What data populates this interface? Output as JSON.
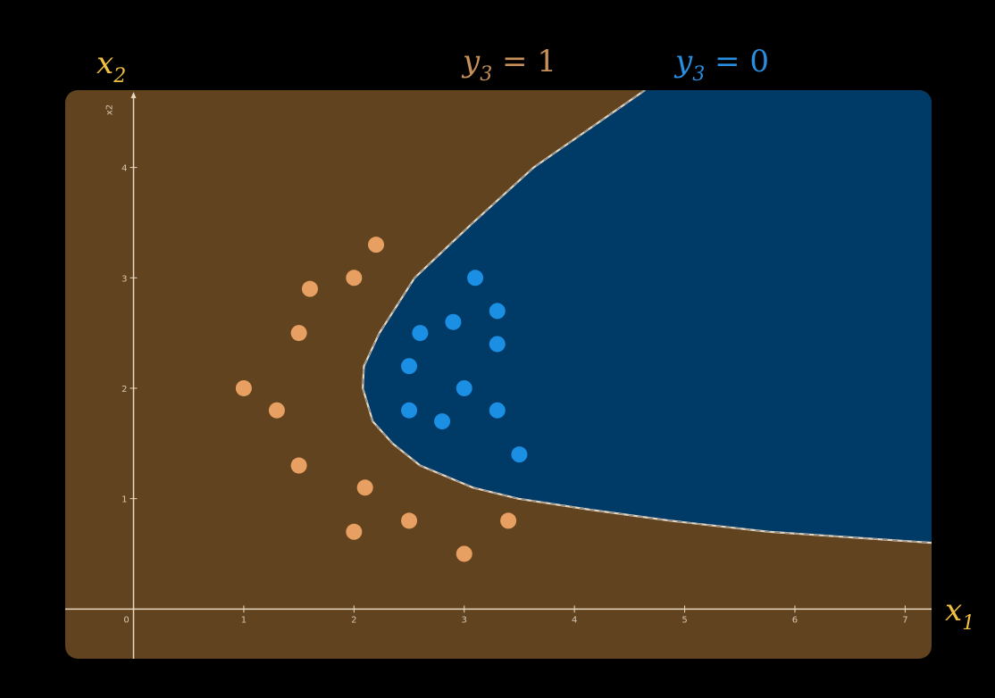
{
  "chart_data": {
    "type": "scatter",
    "x_label": {
      "var": "x",
      "sub": "1"
    },
    "y_label": {
      "var": "x",
      "sub": "2"
    },
    "y_axis_name": "x2",
    "xlim": [
      -0.62,
      7.24
    ],
    "ylim": [
      -0.45,
      4.7
    ],
    "xticks": [
      0,
      1,
      2,
      3,
      4,
      5,
      6,
      7
    ],
    "yticks": [
      1,
      2,
      3,
      4
    ],
    "background_color": "#62431f",
    "boundary": {
      "color": "#003a66",
      "x": [
        4.64,
        3.63,
        3.08,
        2.55,
        2.23,
        2.09,
        2.08,
        2.17,
        2.35,
        2.6,
        3.08,
        3.49,
        4.14,
        4.87,
        5.76,
        7.24
      ],
      "y": [
        4.7,
        4.0,
        3.5,
        3.0,
        2.5,
        2.2,
        2.0,
        1.7,
        1.5,
        1.3,
        1.1,
        1.0,
        0.9,
        0.8,
        0.7,
        0.6
      ]
    },
    "series": [
      {
        "label": {
          "var": "y",
          "sub": "3",
          "rest": " = 1"
        },
        "label_color": "#c8905a",
        "color": "#e8a062",
        "x": [
          2.2,
          2.0,
          1.6,
          1.5,
          1.0,
          1.3,
          1.5,
          2.1,
          2.5,
          3.4,
          2.0,
          3.0
        ],
        "values": [
          3.3,
          3.0,
          2.9,
          2.5,
          2.0,
          1.8,
          1.3,
          1.1,
          0.8,
          0.8,
          0.7,
          0.5
        ]
      },
      {
        "label": {
          "var": "y",
          "sub": "3",
          "rest": " = 0"
        },
        "label_color": "#2a8ee0",
        "color": "#1a8fe3",
        "x": [
          3.1,
          2.9,
          3.3,
          2.6,
          3.3,
          2.5,
          3.0,
          2.5,
          2.8,
          3.3,
          3.5
        ],
        "values": [
          3.0,
          2.6,
          2.7,
          2.5,
          2.4,
          2.2,
          2.0,
          1.8,
          1.7,
          1.8,
          1.4
        ]
      }
    ]
  }
}
